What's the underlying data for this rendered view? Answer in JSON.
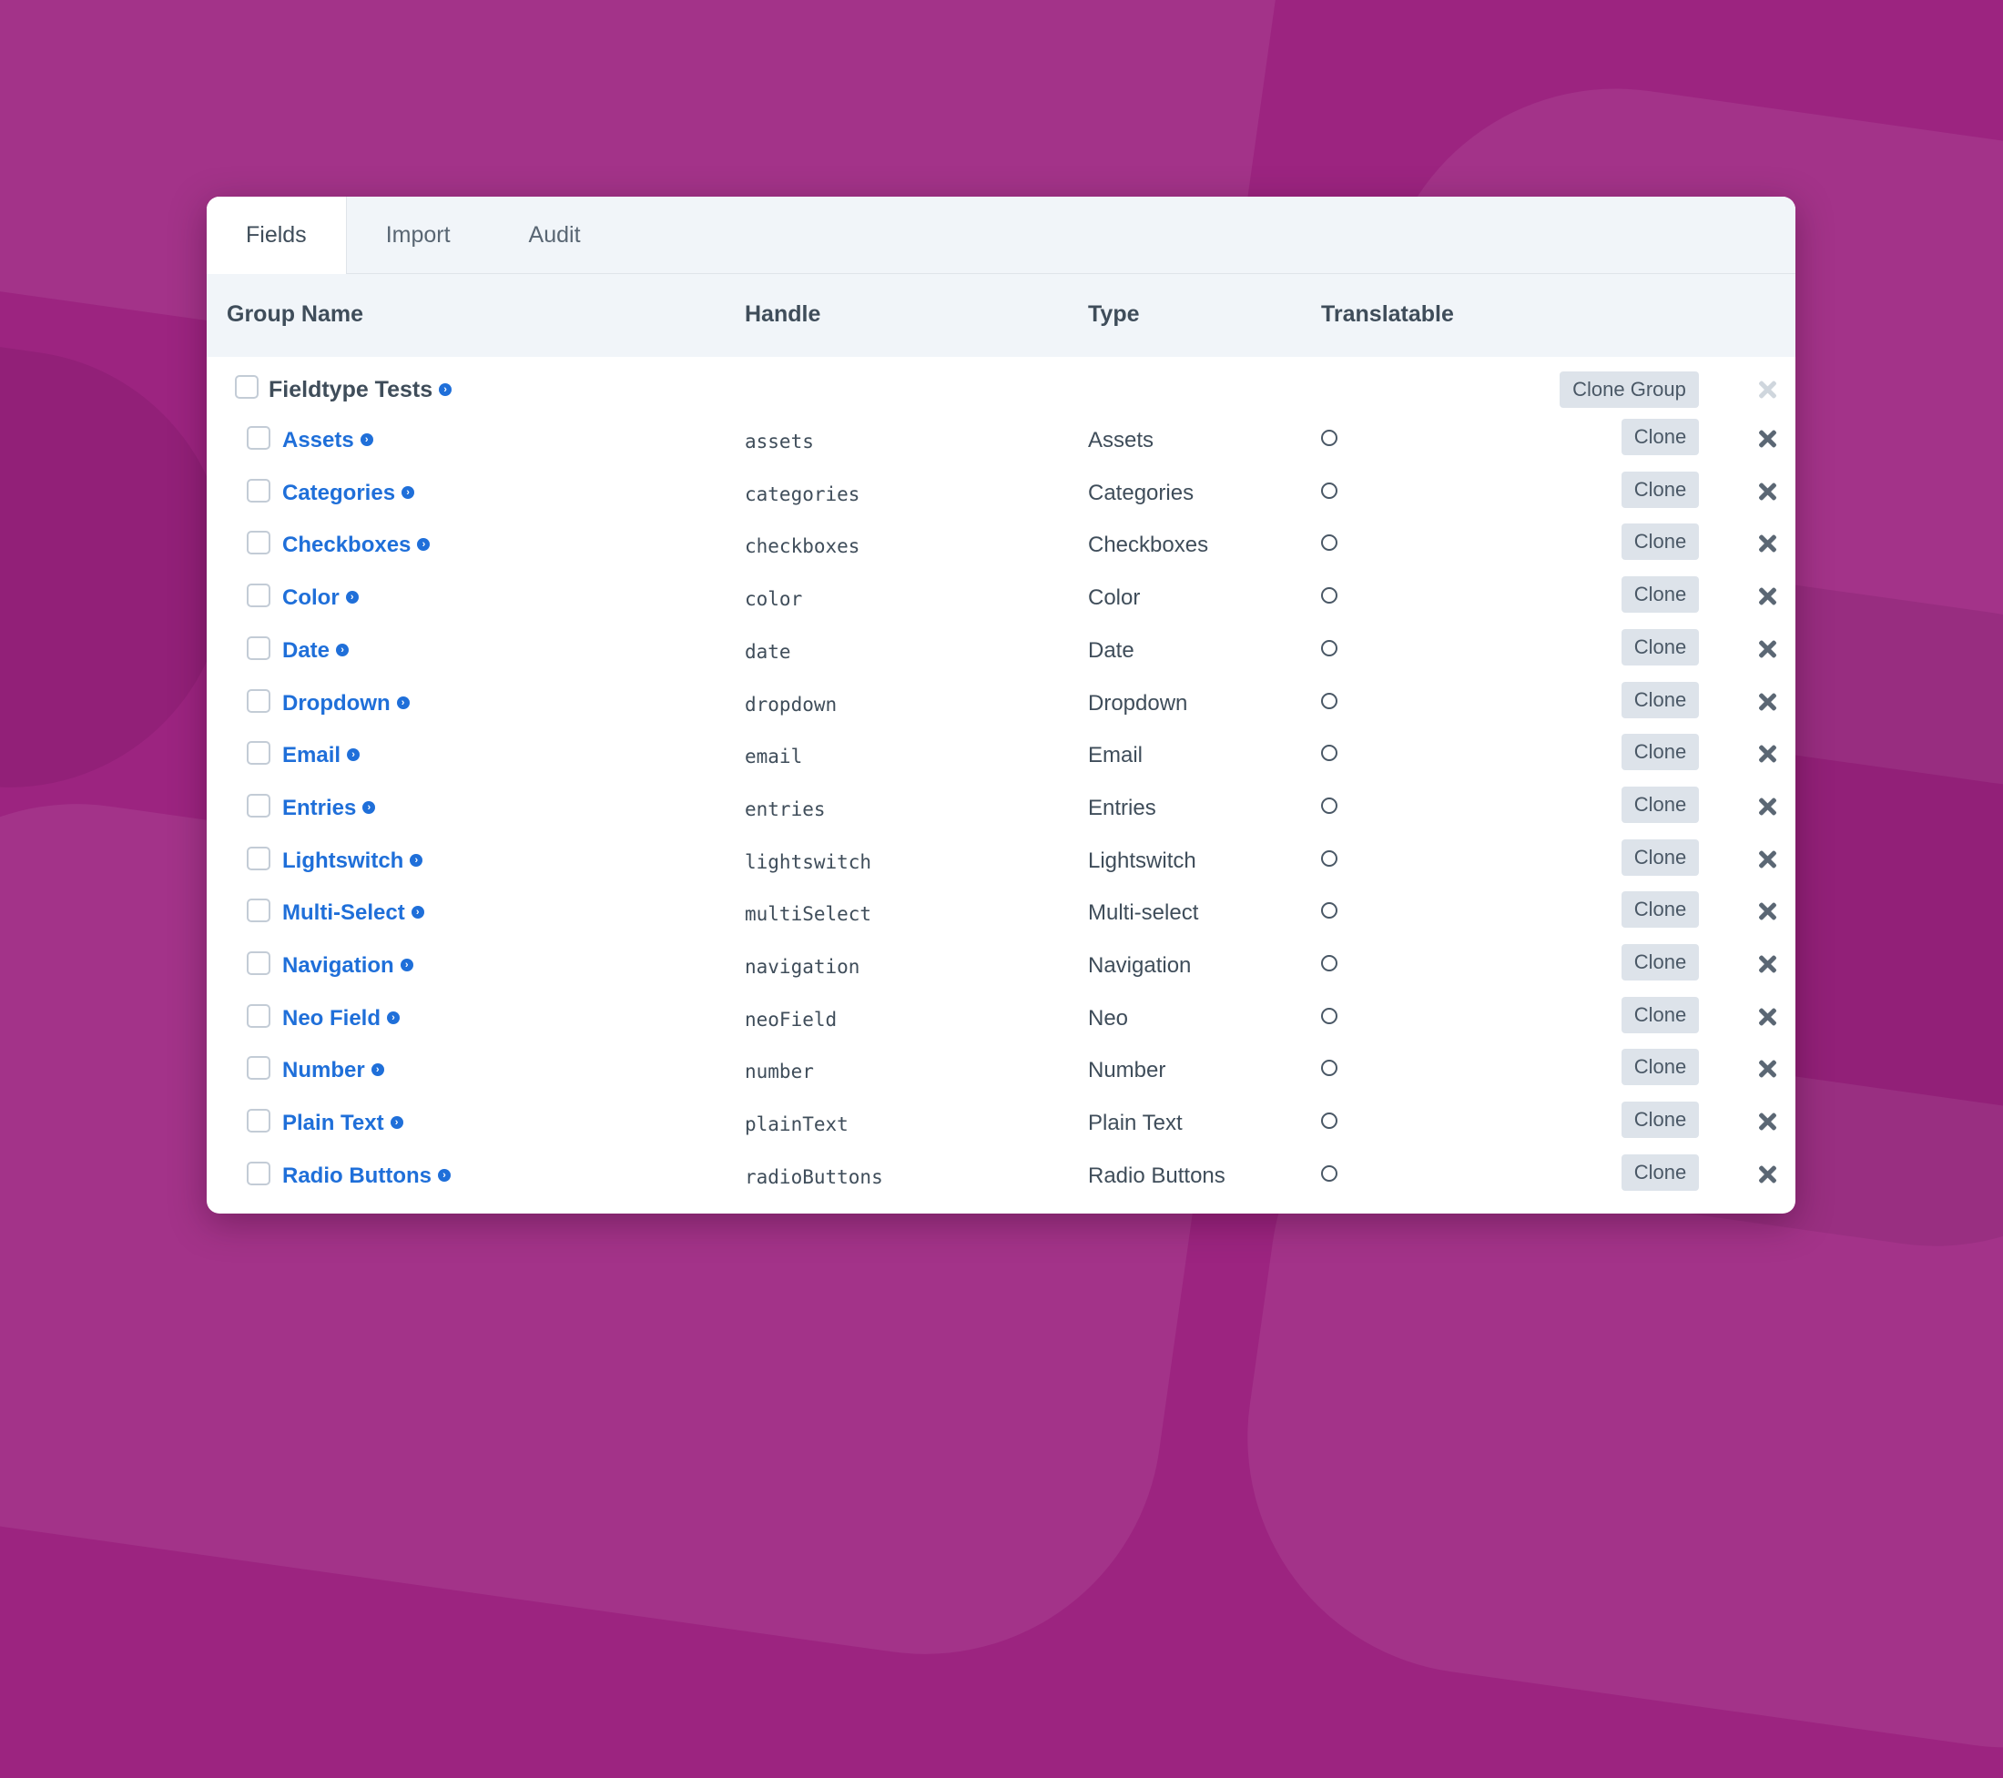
{
  "tabs": [
    "Fields",
    "Import",
    "Audit"
  ],
  "columns": {
    "group_name": "Group Name",
    "handle": "Handle",
    "type": "Type",
    "translatable": "Translatable"
  },
  "group": {
    "name": "Fieldtype Tests",
    "clone_label": "Clone Group"
  },
  "clone_label": "Clone",
  "fields": [
    {
      "name": "Assets",
      "handle": "assets",
      "type": "Assets"
    },
    {
      "name": "Categories",
      "handle": "categories",
      "type": "Categories"
    },
    {
      "name": "Checkboxes",
      "handle": "checkboxes",
      "type": "Checkboxes"
    },
    {
      "name": "Color",
      "handle": "color",
      "type": "Color"
    },
    {
      "name": "Date",
      "handle": "date",
      "type": "Date"
    },
    {
      "name": "Dropdown",
      "handle": "dropdown",
      "type": "Dropdown"
    },
    {
      "name": "Email",
      "handle": "email",
      "type": "Email"
    },
    {
      "name": "Entries",
      "handle": "entries",
      "type": "Entries"
    },
    {
      "name": "Lightswitch",
      "handle": "lightswitch",
      "type": "Lightswitch"
    },
    {
      "name": "Multi-Select",
      "handle": "multiSelect",
      "type": "Multi-select"
    },
    {
      "name": "Navigation",
      "handle": "navigation",
      "type": "Navigation"
    },
    {
      "name": "Neo Field",
      "handle": "neoField",
      "type": "Neo"
    },
    {
      "name": "Number",
      "handle": "number",
      "type": "Number"
    },
    {
      "name": "Plain Text",
      "handle": "plainText",
      "type": "Plain Text"
    },
    {
      "name": "Radio Buttons",
      "handle": "radioButtons",
      "type": "Radio Buttons"
    }
  ],
  "icons": {
    "field_link": "arrow-circle-icon",
    "delete": "close-icon",
    "translatable": "radio-empty-icon"
  },
  "colors": {
    "background": "#9c2480",
    "link": "#1f6fd9",
    "header_bg": "#f1f5f9"
  }
}
